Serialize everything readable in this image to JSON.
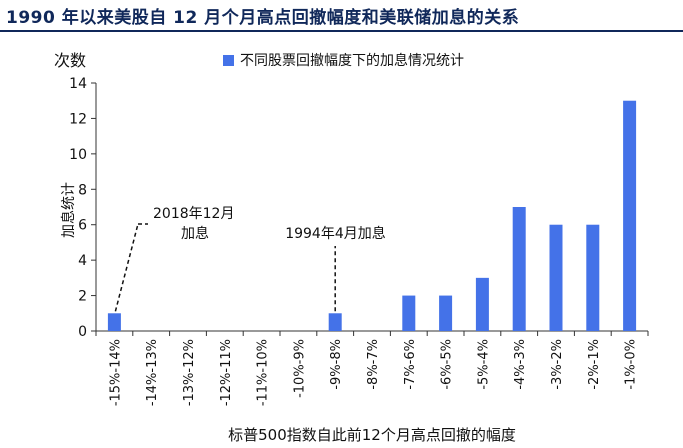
{
  "page_title": "1990 年以来美股自 12 月个月高点回撤幅度和美联储加息的关系",
  "colors": {
    "bar": "#4472e8",
    "axis": "#333333",
    "title": "#10285a"
  },
  "chart_data": {
    "type": "bar",
    "title": "",
    "y_unit_label": "次数",
    "ylabel": "加息统计",
    "xlabel": "标普500指数自此前12个月高点回撤的幅度",
    "ylim": [
      0,
      14
    ],
    "yticks": [
      0,
      2,
      4,
      6,
      8,
      10,
      12,
      14
    ],
    "grid": false,
    "legend_position": "top-right",
    "categories": [
      "-15%-14%",
      "-14%-13%",
      "-13%-12%",
      "-12%-11%",
      "-11%-10%",
      "-10%-9%",
      "-9%-8%",
      "-8%-7%",
      "-7%-6%",
      "-6%-5%",
      "-5%-4%",
      "-4%-3%",
      "-3%-2%",
      "-2%-1%",
      "-1%-0%"
    ],
    "series": [
      {
        "name": "不同股票回撤幅度下的加息情况统计",
        "values": [
          1,
          0,
          0,
          0,
          0,
          0,
          1,
          0,
          2,
          2,
          3,
          7,
          6,
          6,
          13
        ]
      }
    ],
    "annotations": [
      {
        "text_line1": "2018年12月",
        "text_line2": "加息",
        "category_index": 0
      },
      {
        "text_line1": "1994年4月加息",
        "text_line2": "",
        "category_index": 6
      }
    ]
  }
}
